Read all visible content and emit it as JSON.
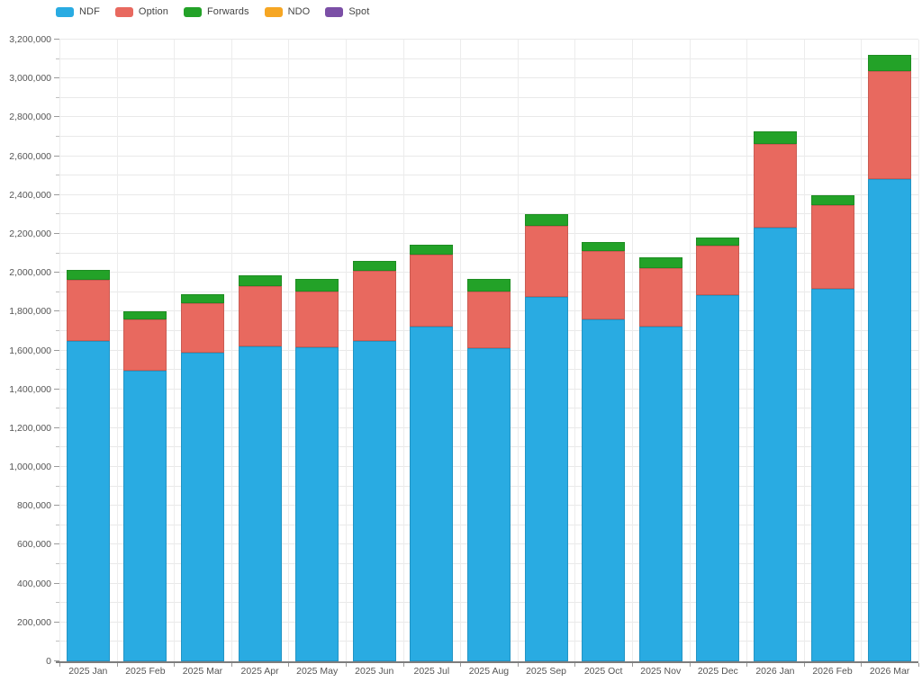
{
  "page": {
    "background": "#FFFFFF"
  },
  "legend": {
    "items": [
      {
        "label": "NDF",
        "color": "#29ABE2"
      },
      {
        "label": "Option",
        "color": "#E8695F"
      },
      {
        "label": "Forwards",
        "color": "#23A228"
      },
      {
        "label": "NDO",
        "color": "#F6A623"
      },
      {
        "label": "Spot",
        "color": "#7B4FA6"
      }
    ]
  },
  "chart_data": {
    "type": "bar",
    "stacked": true,
    "title": "",
    "xlabel": "",
    "ylabel": "",
    "ylim": [
      0,
      3200000
    ],
    "y_major_step": 200000,
    "y_minor_step": 100000,
    "grid": true,
    "legend_position": "top-left",
    "categories": [
      "2025 Jan",
      "2025 Feb",
      "2025 Mar",
      "2025 Apr",
      "2025 May",
      "2025 Jun",
      "2025 Jul",
      "2025 Aug",
      "2025 Sep",
      "2025 Oct",
      "2025 Nov",
      "2025 Dec",
      "2026 Jan",
      "2026 Feb",
      "2026 Mar"
    ],
    "series": [
      {
        "name": "NDF",
        "color": "#29ABE2",
        "values": [
          1650000,
          1495000,
          1590000,
          1620000,
          1615000,
          1650000,
          1725000,
          1610000,
          1875000,
          1760000,
          1725000,
          1885000,
          2230000,
          1915000,
          2480000
        ]
      },
      {
        "name": "Option",
        "color": "#E8695F",
        "values": [
          315000,
          265000,
          255000,
          310000,
          290000,
          360000,
          370000,
          295000,
          365000,
          350000,
          300000,
          255000,
          435000,
          435000,
          560000
        ]
      },
      {
        "name": "Forwards",
        "color": "#23A228",
        "values": [
          50000,
          40000,
          45000,
          55000,
          65000,
          50000,
          50000,
          65000,
          60000,
          50000,
          55000,
          40000,
          65000,
          50000,
          80000
        ]
      },
      {
        "name": "NDO",
        "color": "#F6A623",
        "values": [
          0,
          0,
          0,
          0,
          0,
          0,
          0,
          0,
          0,
          0,
          0,
          0,
          0,
          0,
          0
        ]
      },
      {
        "name": "Spot",
        "color": "#7B4FA6",
        "values": [
          0,
          0,
          0,
          0,
          0,
          0,
          0,
          0,
          0,
          0,
          0,
          0,
          0,
          0,
          0
        ]
      }
    ],
    "stack_totals": [
      2015000,
      1800000,
      1890000,
      1985000,
      1970000,
      2060000,
      2145000,
      1970000,
      2300000,
      2160000,
      2080000,
      2180000,
      2730000,
      2400000,
      3120000
    ]
  },
  "y_axis": {
    "tick_labels": [
      {
        "value": 0,
        "label": "0"
      },
      {
        "value": 200000,
        "label": "200,000"
      },
      {
        "value": 400000,
        "label": "400,000"
      },
      {
        "value": 600000,
        "label": "600,000"
      },
      {
        "value": 800000,
        "label": "800,000"
      },
      {
        "value": 1000000,
        "label": "1,000,000"
      },
      {
        "value": 1200000,
        "label": "1,200,000"
      },
      {
        "value": 1400000,
        "label": "1,400,000"
      },
      {
        "value": 1600000,
        "label": "1,600,000"
      },
      {
        "value": 1800000,
        "label": "1,800,000"
      },
      {
        "value": 2000000,
        "label": "2,000,000"
      },
      {
        "value": 2200000,
        "label": "2,200,000"
      },
      {
        "value": 2400000,
        "label": "2,400,000"
      },
      {
        "value": 2600000,
        "label": "2,600,000"
      },
      {
        "value": 2800000,
        "label": "2,800,000"
      },
      {
        "value": 3000000,
        "label": "3,000,000"
      },
      {
        "value": 3200000,
        "label": "3,200,000"
      }
    ]
  }
}
